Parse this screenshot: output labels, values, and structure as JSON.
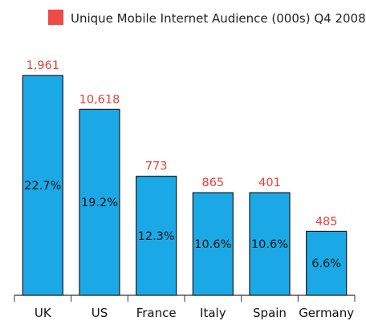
{
  "colors": {
    "bar": "#1aa9e6",
    "bar_stroke": "#1b1b1b",
    "legend_swatch": "#ef4a47",
    "top_label": "#e8403a",
    "axis": "#333333"
  },
  "chart_data": {
    "type": "bar",
    "categories": [
      "UK",
      "US",
      "France",
      "Italy",
      "Spain",
      "Germany"
    ],
    "series": [
      {
        "name": "Unique Mobile Internet Audience (000s) Q4 2008",
        "values": [
          22.7,
          19.2,
          12.3,
          10.6,
          10.6,
          6.6
        ],
        "value_labels": [
          "22.7%",
          "19.2%",
          "12.3%",
          "10.6%",
          "10.6%",
          "6.6%"
        ],
        "audience_labels": [
          "1,961",
          "10,618",
          "773",
          "865",
          "401",
          "485"
        ]
      }
    ],
    "ylim": [
      0,
      24.2
    ],
    "grid": false,
    "legend": "top-right",
    "legend_label": "Unique Mobile Internet Audience (000s) Q4 2008"
  }
}
